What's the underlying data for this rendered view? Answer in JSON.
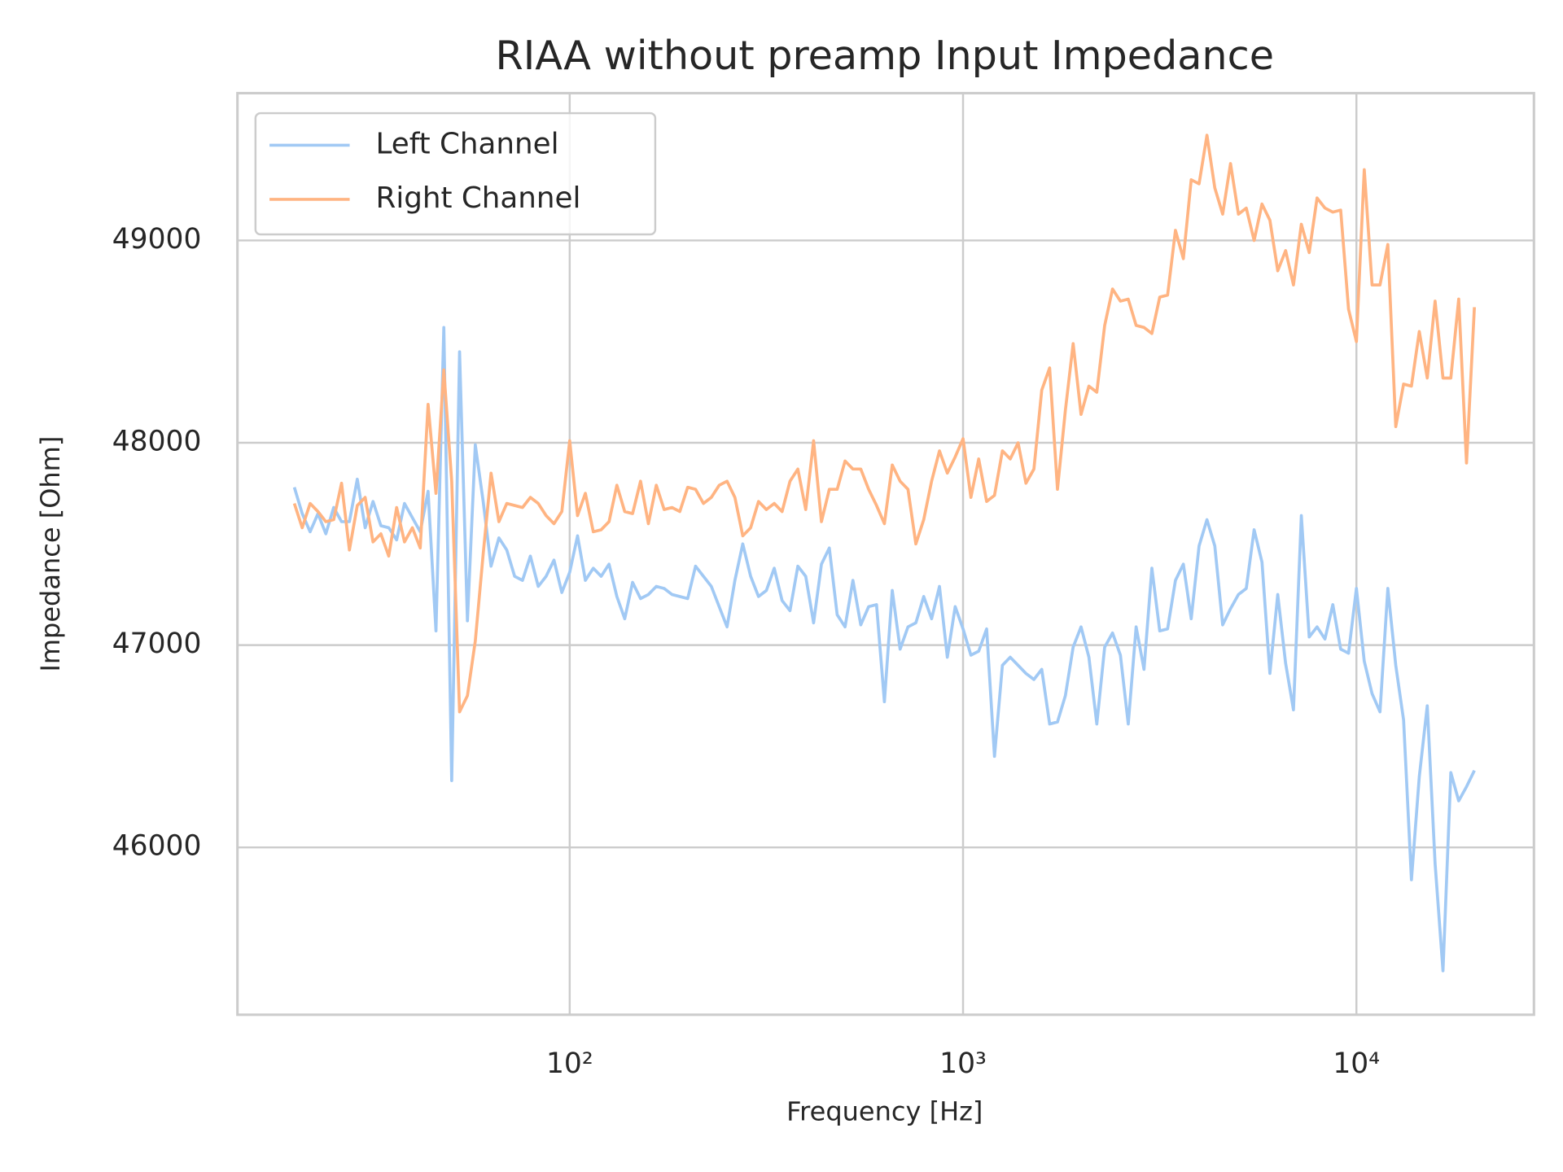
{
  "chart_data": {
    "type": "line",
    "title": "RIAA without preamp Input Impedance",
    "xlabel": "Frequency [Hz]",
    "ylabel": "Impedance [Ohm]",
    "xscale": "log",
    "grid": true,
    "legend": "upper left",
    "xlim": [
      14.3,
      28270
    ],
    "ylim": [
      45173,
      49728
    ],
    "xticks": [
      {
        "value": 100,
        "label": "10²"
      },
      {
        "value": 1000,
        "label": "10³"
      },
      {
        "value": 10000,
        "label": "10⁴"
      }
    ],
    "yticks": [
      46000,
      47000,
      48000,
      49000
    ],
    "x": [
      19.95,
      20.89,
      21.88,
      22.91,
      23.99,
      25.12,
      26.3,
      27.54,
      28.84,
      30.2,
      31.62,
      33.11,
      34.67,
      36.31,
      38.02,
      39.81,
      41.69,
      43.65,
      45.71,
      47.86,
      50.12,
      52.48,
      54.95,
      57.54,
      60.26,
      63.1,
      66.07,
      69.18,
      72.44,
      75.86,
      79.43,
      83.18,
      87.1,
      91.2,
      95.5,
      100,
      104.7,
      109.6,
      114.8,
      120.2,
      125.9,
      131.8,
      138,
      144.5,
      151.4,
      158.5,
      166,
      173.8,
      182,
      190.5,
      199.5,
      208.9,
      218.8,
      229.1,
      239.9,
      251.2,
      263,
      275.4,
      288.4,
      302,
      316.2,
      331.1,
      346.7,
      363.1,
      380.2,
      398.1,
      416.9,
      436.5,
      457.1,
      478.6,
      501.2,
      524.8,
      549.5,
      575.4,
      602.6,
      631,
      660.7,
      691.8,
      724.4,
      758.6,
      794.3,
      831.8,
      871,
      912,
      955,
      1000,
      1047,
      1096,
      1148,
      1202,
      1259,
      1318,
      1380,
      1445,
      1514,
      1585,
      1660,
      1738,
      1820,
      1905,
      1995,
      2089,
      2188,
      2291,
      2399,
      2512,
      2630,
      2754,
      2884,
      3020,
      3162,
      3311,
      3467,
      3631,
      3802,
      3981,
      4169,
      4365,
      4571,
      4786,
      5012,
      5248,
      5495,
      5754,
      6026,
      6310,
      6607,
      6918,
      7244,
      7586,
      7943,
      8318,
      8710,
      9120,
      9550,
      10000,
      10470,
      10960,
      11480,
      12020,
      12590,
      13180,
      13800,
      14450,
      15140,
      15850,
      16600,
      17380,
      18200,
      19050,
      19950
    ],
    "series": [
      {
        "name": "Left Channel",
        "color": "#a1c9f4",
        "values": [
          47780,
          47650,
          47560,
          47650,
          47550,
          47680,
          47610,
          47610,
          47820,
          47580,
          47710,
          47590,
          47580,
          47520,
          47700,
          47630,
          47560,
          47760,
          47070,
          48570,
          46330,
          48450,
          47120,
          47990,
          47710,
          47390,
          47530,
          47470,
          47340,
          47320,
          47440,
          47290,
          47340,
          47420,
          47260,
          47360,
          47540,
          47320,
          47380,
          47340,
          47400,
          47240,
          47130,
          47310,
          47230,
          47250,
          47290,
          47280,
          47250,
          47240,
          47230,
          47390,
          47340,
          47290,
          47190,
          47090,
          47320,
          47500,
          47340,
          47240,
          47270,
          47380,
          47220,
          47170,
          47390,
          47340,
          47110,
          47400,
          47480,
          47150,
          47090,
          47320,
          47100,
          47190,
          47200,
          46720,
          47270,
          46980,
          47090,
          47110,
          47240,
          47130,
          47290,
          46940,
          47190,
          47080,
          46950,
          46970,
          47080,
          46450,
          46900,
          46940,
          46900,
          46860,
          46830,
          46880,
          46610,
          46620,
          46750,
          46990,
          47090,
          46940,
          46610,
          46990,
          47060,
          46950,
          46610,
          47090,
          46880,
          47380,
          47070,
          47080,
          47320,
          47400,
          47130,
          47490,
          47620,
          47490,
          47100,
          47180,
          47250,
          47280,
          47570,
          47410,
          46860,
          47250,
          46910,
          46680,
          47640,
          47040,
          47090,
          47030,
          47200,
          46980,
          46960,
          47280,
          46920,
          46760,
          46670,
          47280,
          46900,
          46630,
          45840,
          46350,
          46700,
          45920,
          45390,
          46370,
          46230,
          46300,
          46380
        ]
      },
      {
        "name": "Right Channel",
        "color": "#ffb482",
        "values": [
          47700,
          47580,
          47700,
          47660,
          47610,
          47620,
          47800,
          47470,
          47690,
          47730,
          47510,
          47550,
          47440,
          47680,
          47510,
          47580,
          47480,
          48190,
          47750,
          48360,
          47810,
          46670,
          46750,
          47020,
          47450,
          47850,
          47610,
          47700,
          47690,
          47680,
          47730,
          47700,
          47640,
          47600,
          47660,
          48010,
          47640,
          47750,
          47560,
          47570,
          47610,
          47790,
          47660,
          47650,
          47810,
          47600,
          47790,
          47670,
          47680,
          47660,
          47780,
          47770,
          47700,
          47730,
          47790,
          47810,
          47730,
          47540,
          47580,
          47710,
          47670,
          47700,
          47660,
          47810,
          47870,
          47670,
          48010,
          47610,
          47770,
          47770,
          47910,
          47870,
          47870,
          47770,
          47690,
          47600,
          47890,
          47810,
          47770,
          47500,
          47620,
          47810,
          47960,
          47850,
          47930,
          48020,
          47730,
          47920,
          47710,
          47740,
          47960,
          47920,
          48000,
          47800,
          47870,
          48260,
          48370,
          47770,
          48160,
          48490,
          48140,
          48280,
          48250,
          48580,
          48760,
          48700,
          48710,
          48580,
          48570,
          48540,
          48720,
          48730,
          49050,
          48910,
          49300,
          49280,
          49520,
          49260,
          49130,
          49380,
          49130,
          49160,
          49000,
          49180,
          49100,
          48850,
          48950,
          48780,
          49080,
          48940,
          49210,
          49160,
          49140,
          49150,
          48660,
          48500,
          49350,
          48780,
          48780,
          48980,
          48080,
          48290,
          48280,
          48550,
          48320,
          48700,
          48320,
          48320,
          48710,
          47900,
          48670
        ]
      }
    ]
  }
}
